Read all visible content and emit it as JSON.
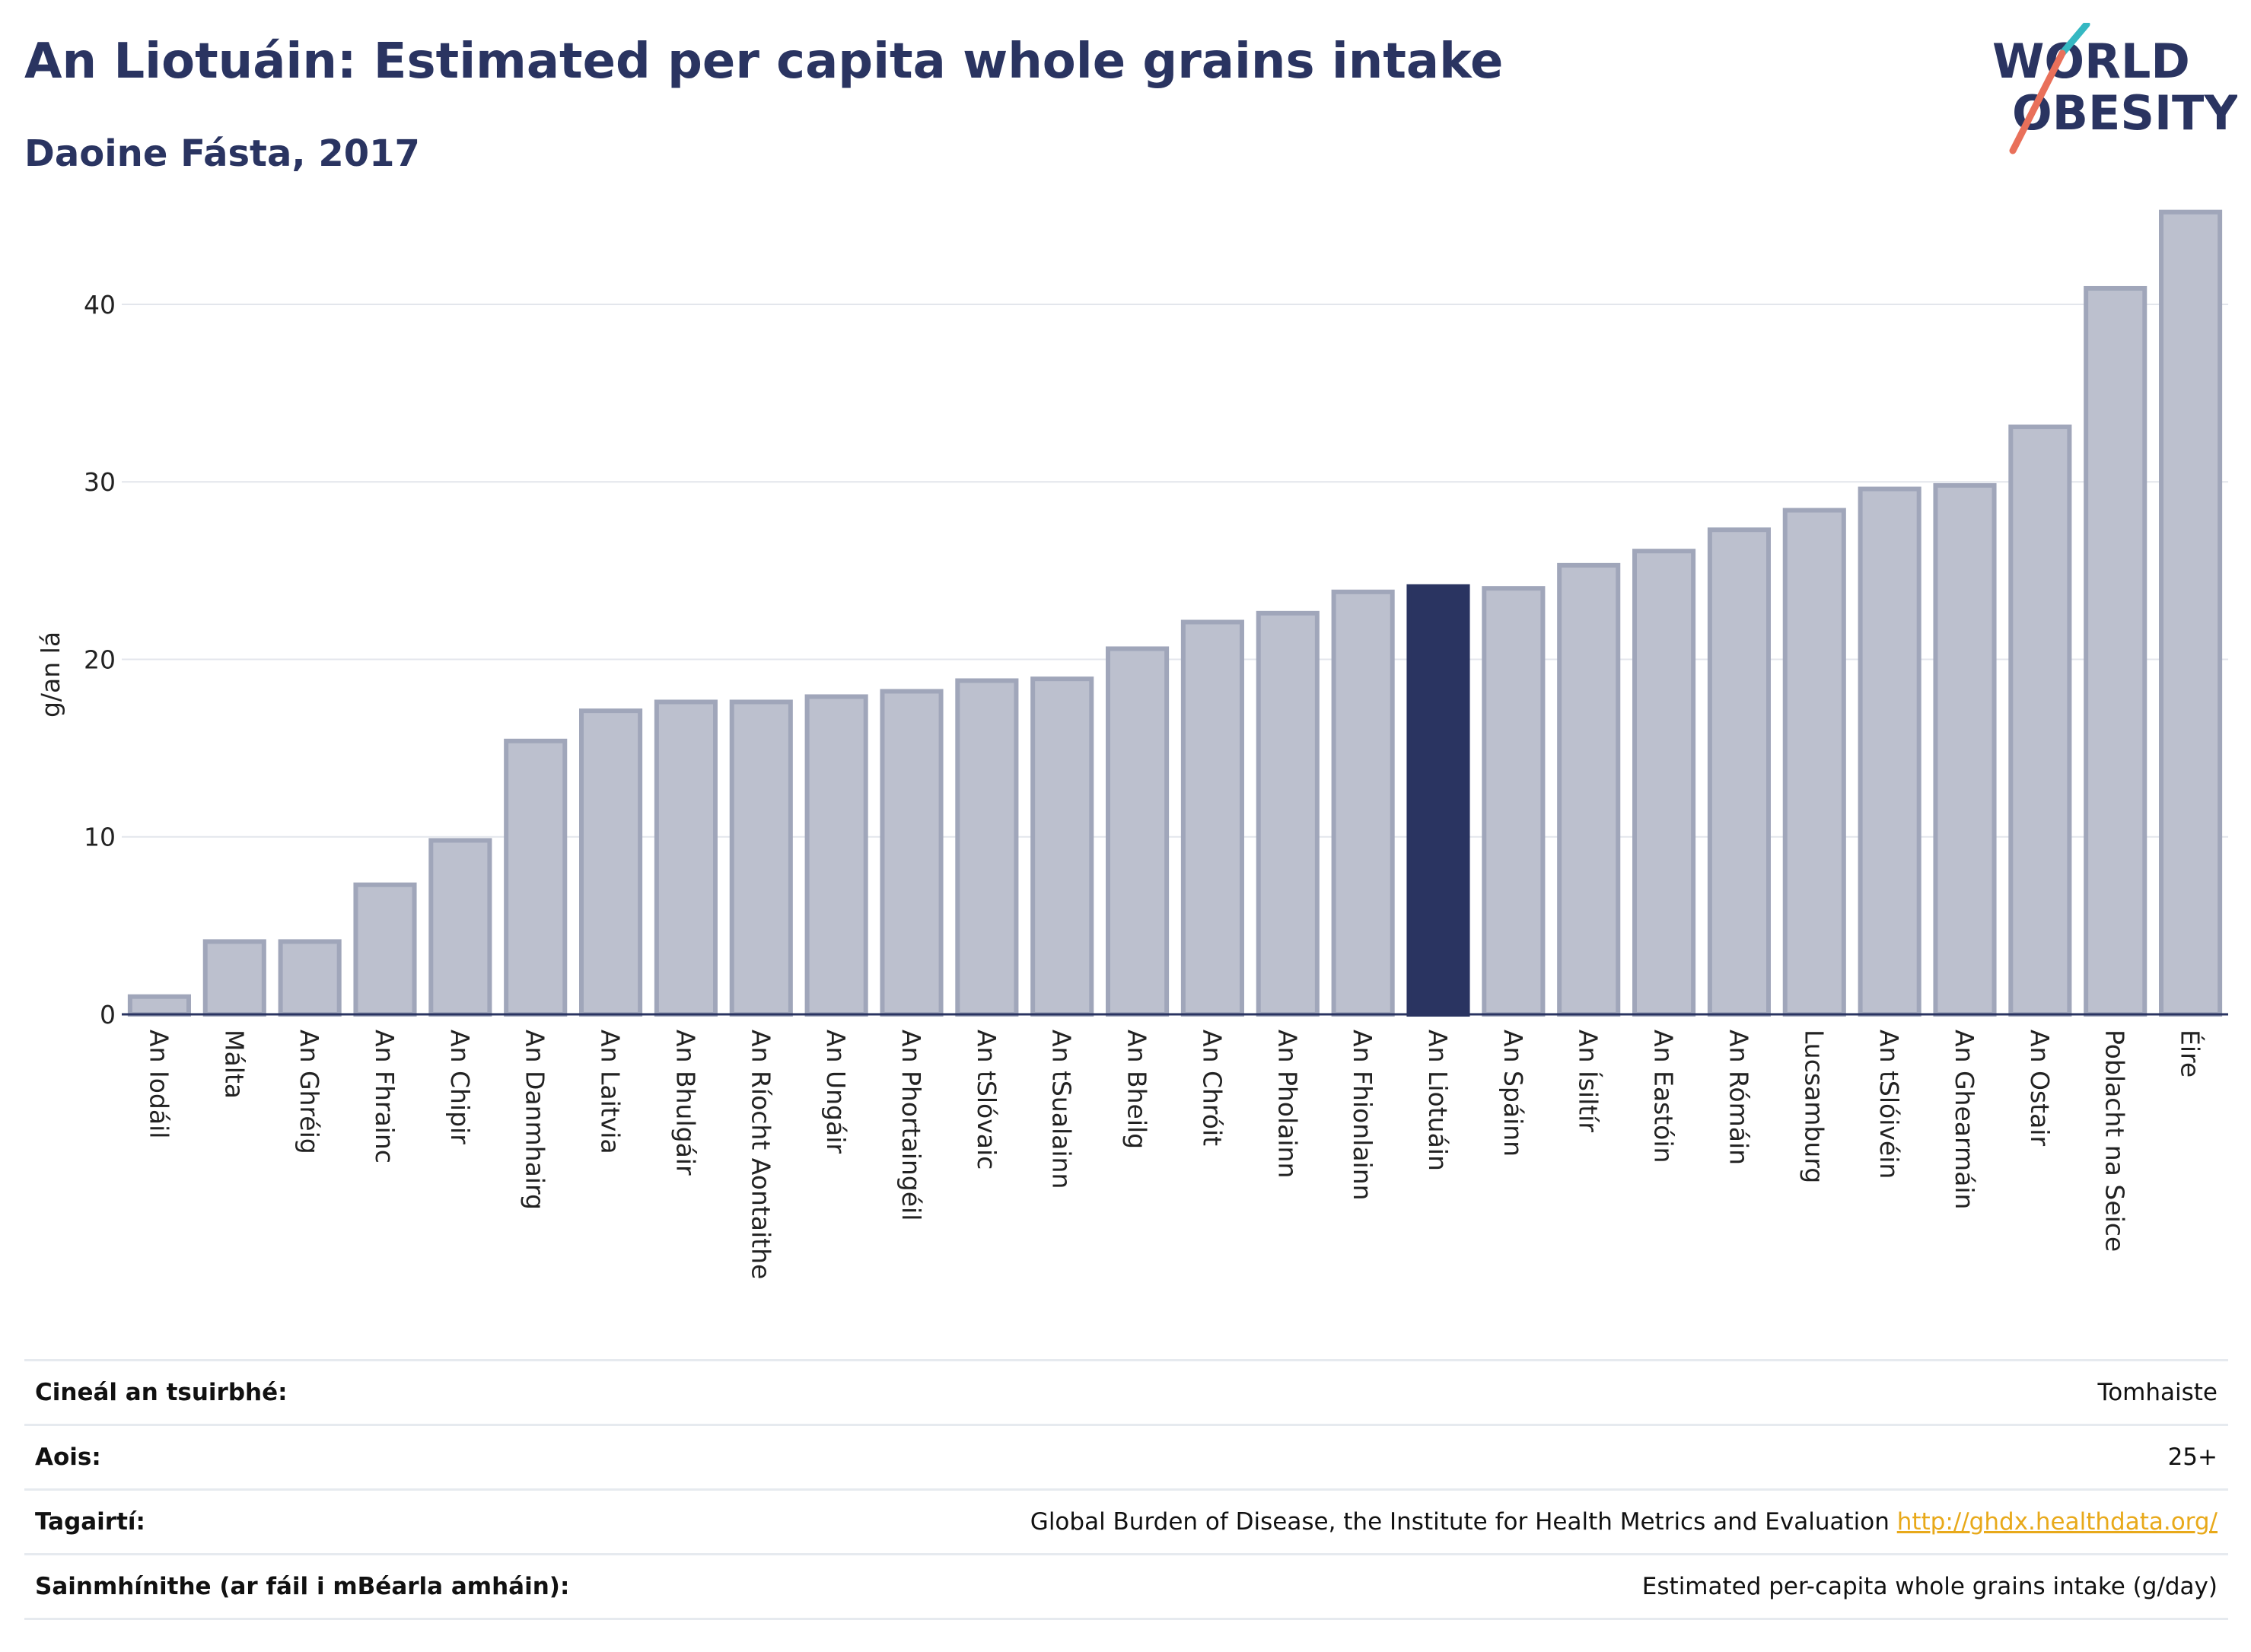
{
  "header": {
    "title": "An Liotuáin: Estimated per capita whole grains intake",
    "subtitle": "Daoine Fásta, 2017"
  },
  "logo": {
    "line1": "WORLD",
    "line2": "OBESITY",
    "colors": {
      "text": "#2a3461",
      "teal": "#35b8c2",
      "coral": "#e9705a"
    }
  },
  "colors": {
    "bar_default": "#bcc0ce",
    "bar_border": "#a0a6ba",
    "bar_highlight": "#2a3461",
    "axis": "#2a3461",
    "grid": "#e3e6ec"
  },
  "chart_data": {
    "type": "bar",
    "ylabel": "g/an lá",
    "ylim": [
      0,
      46
    ],
    "yticks": [
      0,
      10,
      20,
      30,
      40
    ],
    "grid": true,
    "highlight": "An Liotuáin",
    "categories": [
      "An Iodáil",
      "Málta",
      "An Ghréig",
      "An Fhrainc",
      "An Chipir",
      "An Danmhairg",
      "An Laitvia",
      "An Bhulgáir",
      "An Ríocht Aontaithe",
      "An Ungáir",
      "An Phortaingéil",
      "An tSlóvaic",
      "An tSualainn",
      "An Bheilg",
      "An Chróit",
      "An Pholainn",
      "An Fhionlainn",
      "An Liotuáin",
      "An Spáinn",
      "An Ísiltír",
      "An Eastóin",
      "An Rómáin",
      "Lucsamburg",
      "An tSlóivéin",
      "An Ghearmáin",
      "An Ostair",
      "Poblacht na Seice",
      "Éire"
    ],
    "values": [
      1.0,
      4.1,
      4.1,
      7.3,
      9.8,
      15.4,
      17.1,
      17.6,
      17.6,
      17.9,
      18.2,
      18.8,
      18.9,
      20.6,
      22.1,
      22.6,
      23.8,
      24.1,
      24.0,
      25.3,
      26.1,
      27.3,
      28.4,
      29.6,
      29.8,
      33.1,
      40.9,
      45.2
    ]
  },
  "info": [
    {
      "key": "Cineál an tsuirbhé:",
      "value": "Tomhaiste"
    },
    {
      "key": "Aois:",
      "value": "25+"
    },
    {
      "key": "Tagairtí:",
      "value": "Global Burden of Disease, the Institute for Health Metrics and Evaluation",
      "link": "http://ghdx.healthdata.org/"
    },
    {
      "key": "Sainmhínithe (ar fáil i mBéarla amháin):",
      "value": "Estimated per-capita whole grains intake (g/day)"
    }
  ]
}
